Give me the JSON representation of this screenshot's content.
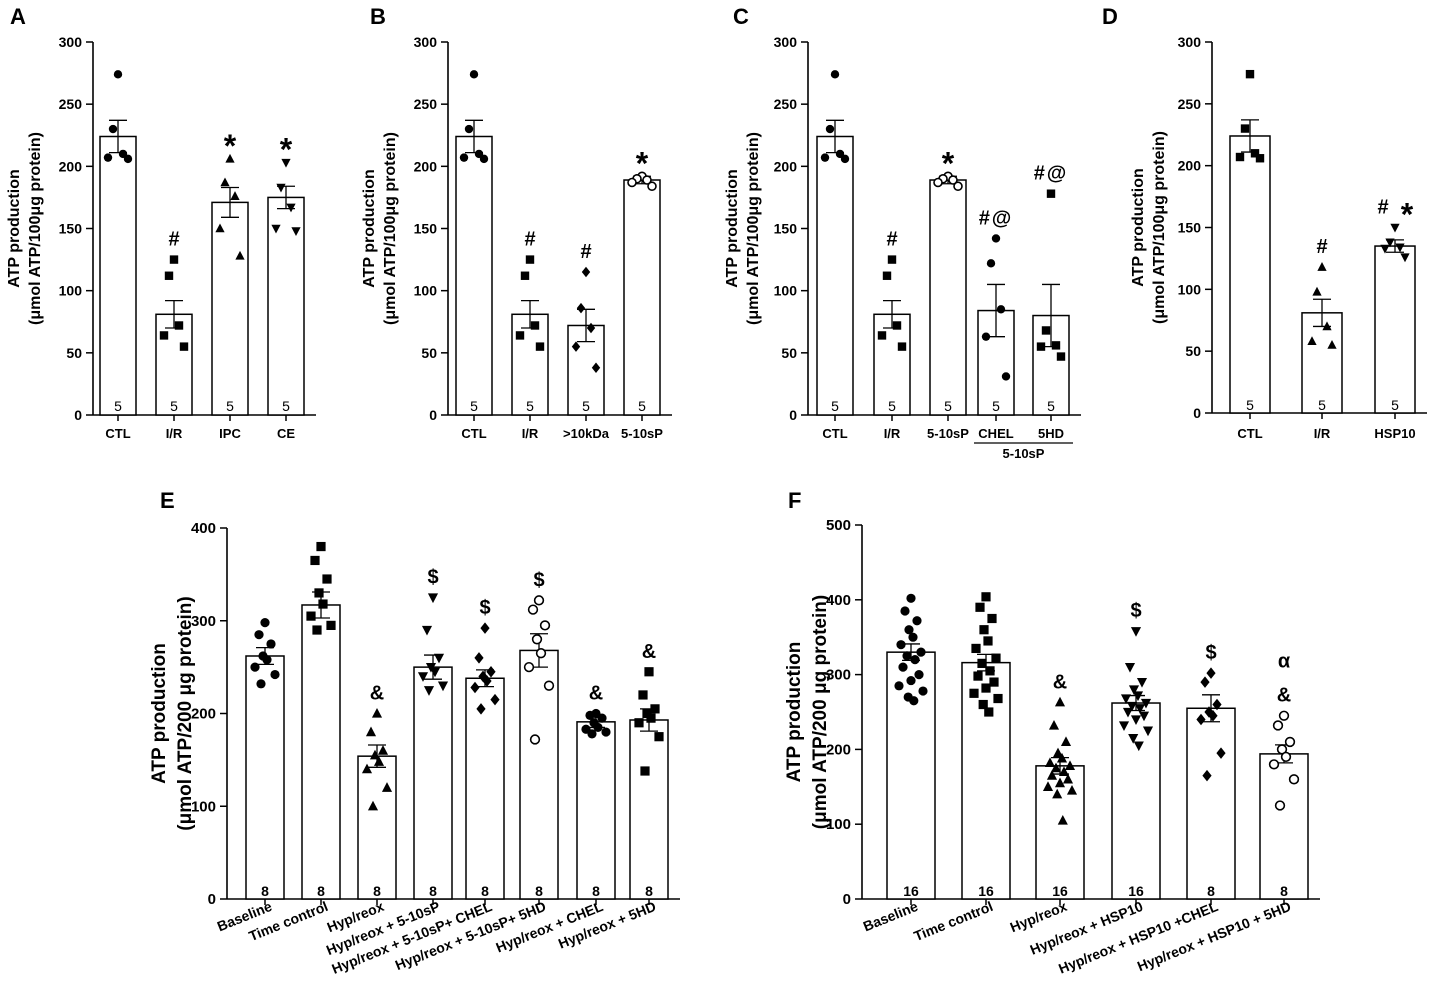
{
  "chart_data": [
    {
      "panel": "A",
      "type": "bar",
      "ylabel": [
        "ATP production",
        "(μmol ATP/100μg protein)"
      ],
      "ylim": [
        0,
        300
      ],
      "yticks": [
        0,
        50,
        100,
        150,
        200,
        250,
        300
      ],
      "categories": [
        "CTL",
        "I/R",
        "IPC",
        "CE"
      ],
      "means": [
        224,
        81,
        171,
        175
      ],
      "sem": [
        13,
        11,
        12,
        9
      ],
      "n": [
        "5",
        "5",
        "5",
        "5"
      ],
      "markers": [
        "circle",
        "square",
        "triangle",
        "invtriangle"
      ],
      "points": [
        [
          274,
          230,
          210,
          207,
          206
        ],
        [
          125,
          112,
          72,
          64,
          55
        ],
        [
          206,
          187,
          176,
          150,
          128
        ],
        [
          203,
          183,
          167,
          150,
          148
        ]
      ],
      "annotations": [
        "",
        "#",
        "*",
        "*"
      ]
    },
    {
      "panel": "B",
      "type": "bar",
      "ylabel": [
        "ATP production",
        "(μmol ATP/100μg protein)"
      ],
      "ylim": [
        0,
        300
      ],
      "yticks": [
        0,
        50,
        100,
        150,
        200,
        250,
        300
      ],
      "categories": [
        "CTL",
        "I/R",
        ">10kDa",
        "5-10sP"
      ],
      "means": [
        224,
        81,
        72,
        189
      ],
      "sem": [
        13,
        11,
        13,
        3
      ],
      "n": [
        "5",
        "5",
        "5",
        "5"
      ],
      "markers": [
        "circle",
        "square",
        "diamond",
        "ocircle"
      ],
      "points": [
        [
          274,
          230,
          210,
          207,
          206
        ],
        [
          125,
          112,
          72,
          64,
          55
        ],
        [
          115,
          86,
          70,
          55,
          38
        ],
        [
          192,
          190,
          189,
          187,
          184
        ]
      ],
      "annotations": [
        "",
        "#",
        "#",
        "*"
      ]
    },
    {
      "panel": "C",
      "type": "bar",
      "ylabel": [
        "ATP production",
        "(μmol ATP/100μg protein)"
      ],
      "ylim": [
        0,
        300
      ],
      "yticks": [
        0,
        50,
        100,
        150,
        200,
        250,
        300
      ],
      "categories": [
        "CTL",
        "I/R",
        "5-10sP",
        "CHEL",
        "5HD"
      ],
      "group_label": "5-10sP",
      "means": [
        224,
        81,
        189,
        84,
        80
      ],
      "sem": [
        13,
        11,
        3,
        21,
        25
      ],
      "n": [
        "5",
        "5",
        "5",
        "5",
        "5"
      ],
      "markers": [
        "circle",
        "square",
        "ocircle",
        "circle",
        "square"
      ],
      "points": [
        [
          274,
          230,
          210,
          207,
          206
        ],
        [
          125,
          112,
          72,
          64,
          55
        ],
        [
          192,
          190,
          189,
          187,
          184
        ],
        [
          142,
          122,
          85,
          63,
          31
        ],
        [
          178,
          68,
          56,
          55,
          47
        ]
      ],
      "annotations": [
        "",
        "#",
        "*",
        "#@",
        "#@"
      ]
    },
    {
      "panel": "D",
      "type": "bar",
      "ylabel": [
        "ATP production",
        "(μmol ATP/100μg protein)"
      ],
      "ylim": [
        0,
        300
      ],
      "yticks": [
        0,
        50,
        100,
        150,
        200,
        250,
        300
      ],
      "categories": [
        "CTL",
        "I/R",
        "HSP10"
      ],
      "means": [
        224,
        81,
        135
      ],
      "sem": [
        13,
        11,
        5
      ],
      "n": [
        "5",
        "5",
        "5"
      ],
      "markers": [
        "square",
        "triangle",
        "invtriangle"
      ],
      "points": [
        [
          274,
          230,
          210,
          207,
          206
        ],
        [
          118,
          98,
          70,
          58,
          55
        ],
        [
          150,
          138,
          134,
          133,
          126
        ]
      ],
      "annotations": [
        "",
        "#",
        "# *"
      ]
    },
    {
      "panel": "E",
      "type": "bar",
      "ylabel": [
        "ATP production",
        "(μmol ATP/200 μg protein)"
      ],
      "ylim": [
        0,
        400
      ],
      "yticks": [
        0,
        100,
        200,
        300,
        400
      ],
      "categories": [
        "Baseline",
        "Time control",
        "Hyp/reox",
        "Hyp/reox + 5-10sP",
        "Hyp/reox + 5-10sP+ CHEL",
        "Hyp/reox + 5-10sP+ 5HD",
        "Hyp/reox +  CHEL",
        "Hyp/reox + 5HD"
      ],
      "means": [
        262,
        317,
        154,
        250,
        238,
        268,
        191,
        193
      ],
      "sem": [
        9,
        14,
        12,
        13,
        9,
        18,
        6,
        12
      ],
      "n": [
        "8",
        "8",
        "8",
        "8",
        "8",
        "8",
        "8",
        "8"
      ],
      "markers": [
        "circle",
        "square",
        "triangle",
        "invtriangle",
        "diamond",
        "ocircle",
        "circle",
        "square"
      ],
      "points": [
        [
          298,
          285,
          275,
          262,
          258,
          250,
          242,
          232
        ],
        [
          380,
          365,
          345,
          330,
          318,
          305,
          295,
          290
        ],
        [
          200,
          180,
          160,
          155,
          148,
          140,
          120,
          100
        ],
        [
          325,
          290,
          260,
          250,
          245,
          240,
          230,
          225
        ],
        [
          292,
          260,
          245,
          240,
          235,
          228,
          215,
          205
        ],
        [
          322,
          312,
          295,
          280,
          265,
          250,
          230,
          172
        ],
        [
          200,
          198,
          195,
          190,
          185,
          183,
          180,
          178
        ],
        [
          245,
          220,
          205,
          200,
          195,
          190,
          175,
          138
        ]
      ],
      "annotations": [
        "",
        "",
        "&",
        "$",
        "$",
        "$",
        "&",
        "&"
      ]
    },
    {
      "panel": "F",
      "type": "bar",
      "ylabel": [
        "ATP production",
        "(μmol ATP/200 μg protein)"
      ],
      "ylim": [
        0,
        500
      ],
      "yticks": [
        0,
        100,
        200,
        300,
        400,
        500
      ],
      "categories": [
        "Baseline",
        "Time control",
        "Hyp/reox",
        "Hyp/reox + HSP10",
        "Hyp/reox + HSP10 +CHEL",
        "Hyp/reox + HSP10 + 5HD"
      ],
      "means": [
        330,
        316,
        178,
        262,
        255,
        194
      ],
      "sem": [
        11,
        11,
        11,
        10,
        18,
        12
      ],
      "n": [
        "16",
        "16",
        "16",
        "16",
        "8",
        "8"
      ],
      "markers": [
        "circle",
        "square",
        "triangle",
        "invtriangle",
        "diamond",
        "ocircle"
      ],
      "points": [
        [
          402,
          385,
          372,
          360,
          350,
          340,
          330,
          325,
          320,
          310,
          300,
          292,
          285,
          278,
          270,
          265
        ],
        [
          404,
          390,
          375,
          360,
          345,
          335,
          322,
          315,
          305,
          298,
          290,
          282,
          275,
          268,
          260,
          250
        ],
        [
          263,
          232,
          210,
          195,
          188,
          182,
          178,
          175,
          170,
          165,
          160,
          155,
          150,
          145,
          140,
          105
        ],
        [
          358,
          310,
          290,
          280,
          272,
          268,
          262,
          258,
          255,
          250,
          245,
          240,
          232,
          225,
          215,
          205
        ],
        [
          302,
          290,
          260,
          250,
          245,
          240,
          195,
          165
        ],
        [
          245,
          232,
          210,
          200,
          190,
          180,
          160,
          125
        ]
      ],
      "annotations": [
        "",
        "",
        "&",
        "$",
        "$",
        "α&"
      ]
    }
  ]
}
